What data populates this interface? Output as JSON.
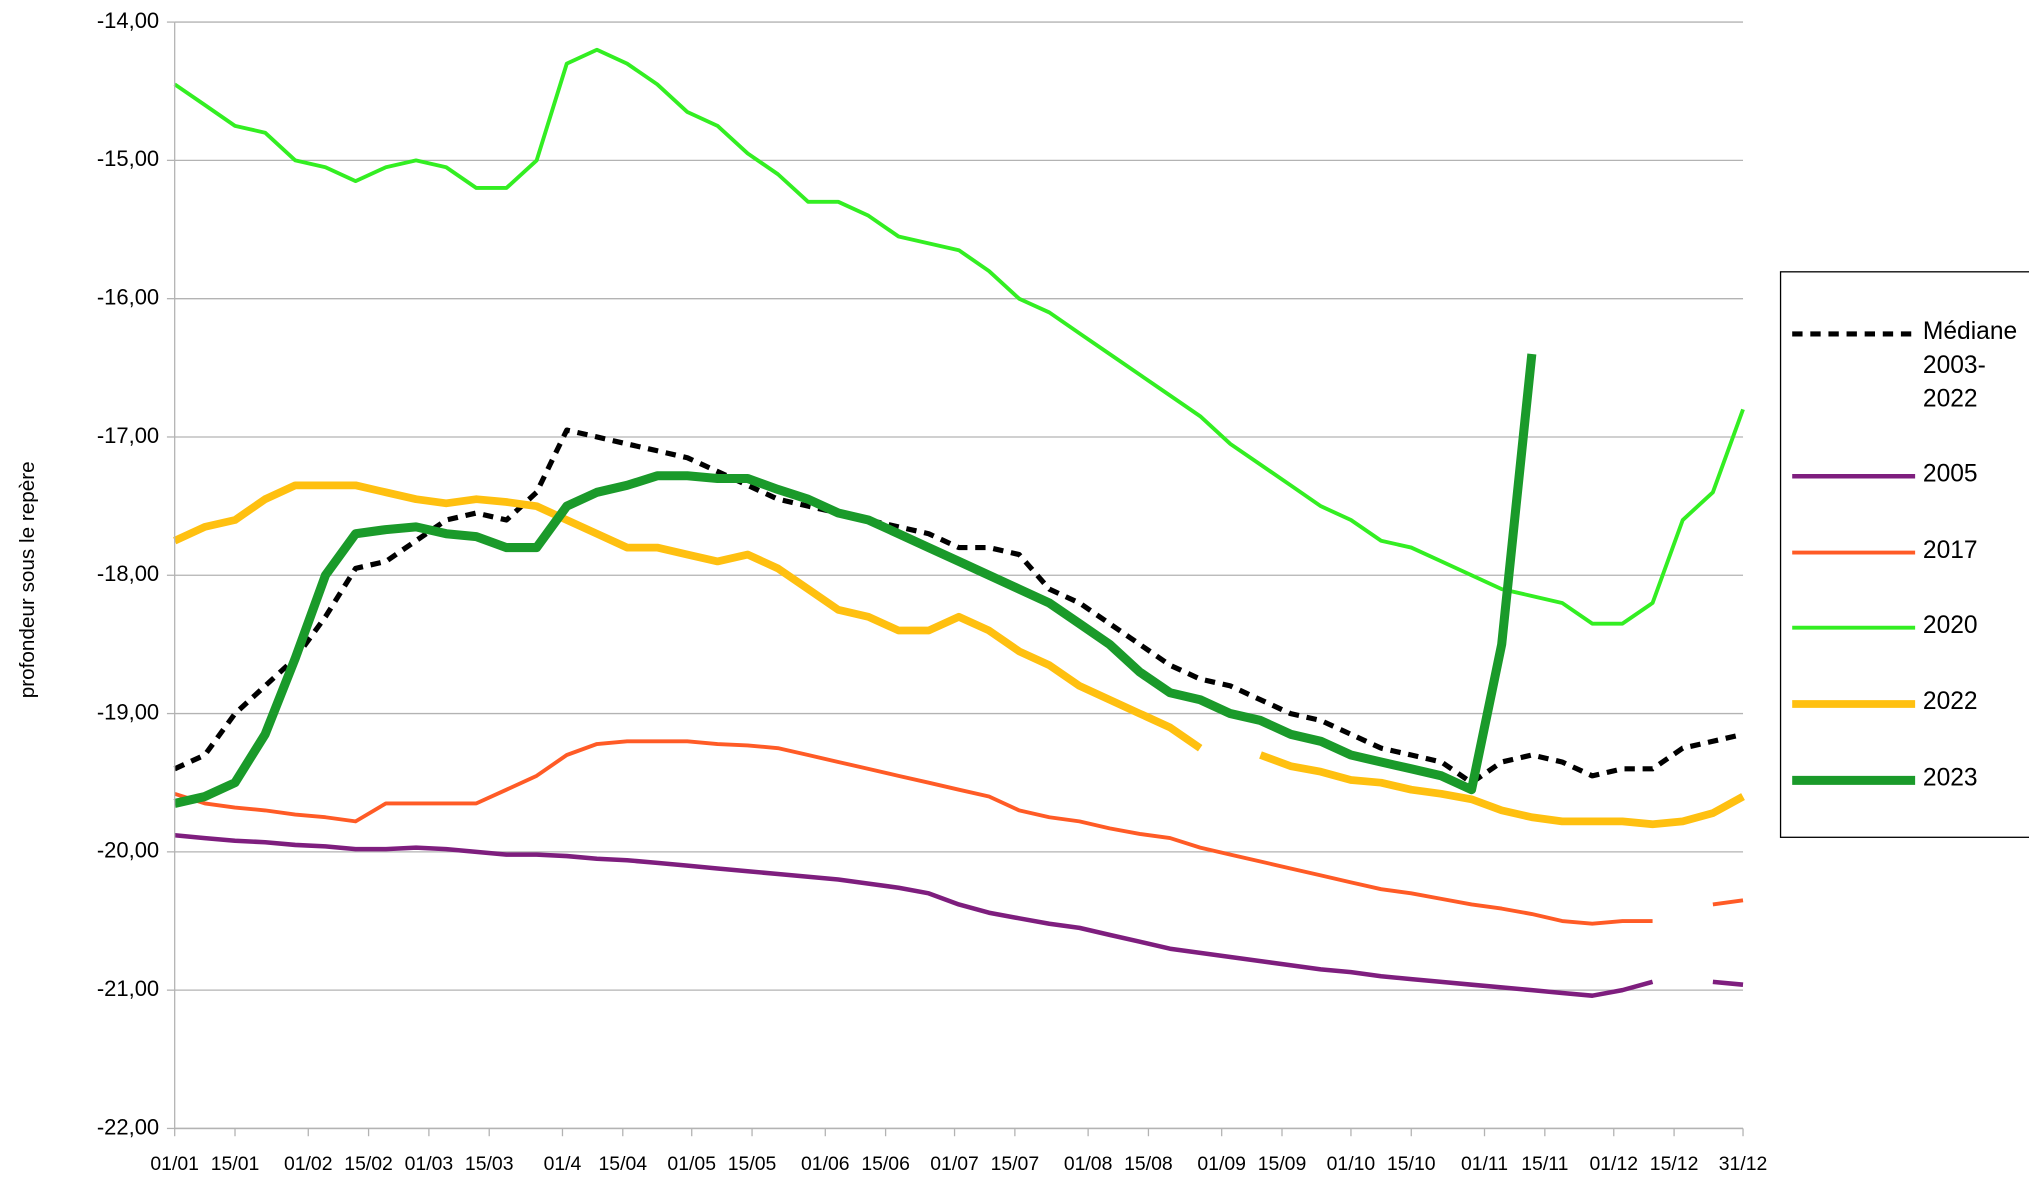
{
  "chart_data": {
    "type": "line",
    "y_label": "profondeur sous le repère",
    "x": [
      1,
      8,
      15,
      22,
      29,
      36,
      43,
      50,
      57,
      64,
      71,
      78,
      85,
      92,
      99,
      106,
      113,
      120,
      127,
      134,
      141,
      148,
      155,
      162,
      169,
      176,
      183,
      190,
      197,
      204,
      211,
      218,
      225,
      232,
      239,
      246,
      253,
      260,
      267,
      274,
      281,
      288,
      295,
      302,
      309,
      316,
      323,
      330,
      337,
      344,
      351,
      358,
      365
    ],
    "xlim": [
      1,
      365
    ],
    "xticks": [
      {
        "value": 1,
        "label": "01/01"
      },
      {
        "value": 15,
        "label": "15/01"
      },
      {
        "value": 32,
        "label": "01/02"
      },
      {
        "value": 46,
        "label": "15/02"
      },
      {
        "value": 60,
        "label": "01/03"
      },
      {
        "value": 74,
        "label": "15/03"
      },
      {
        "value": 91,
        "label": "01/4"
      },
      {
        "value": 105,
        "label": "15/04"
      },
      {
        "value": 121,
        "label": "01/05"
      },
      {
        "value": 135,
        "label": "15/05"
      },
      {
        "value": 152,
        "label": "01/06"
      },
      {
        "value": 166,
        "label": "15/06"
      },
      {
        "value": 182,
        "label": "01/07"
      },
      {
        "value": 196,
        "label": "15/07"
      },
      {
        "value": 213,
        "label": "01/08"
      },
      {
        "value": 227,
        "label": "15/08"
      },
      {
        "value": 244,
        "label": "01/09"
      },
      {
        "value": 258,
        "label": "15/09"
      },
      {
        "value": 274,
        "label": "01/10"
      },
      {
        "value": 288,
        "label": "15/10"
      },
      {
        "value": 305,
        "label": "01/11"
      },
      {
        "value": 319,
        "label": "15/11"
      },
      {
        "value": 335,
        "label": "01/12"
      },
      {
        "value": 349,
        "label": "15/12"
      },
      {
        "value": 365,
        "label": "31/12"
      }
    ],
    "ylim": [
      -22,
      -14
    ],
    "yticks": [
      {
        "value": -22,
        "label": "-22,00"
      },
      {
        "value": -21,
        "label": "-21,00"
      },
      {
        "value": -20,
        "label": "-20,00"
      },
      {
        "value": -19,
        "label": "-19,00"
      },
      {
        "value": -18,
        "label": "-18,00"
      },
      {
        "value": -17,
        "label": "-17,00"
      },
      {
        "value": -16,
        "label": "-16,00"
      },
      {
        "value": -15,
        "label": "-15,00"
      },
      {
        "value": -14,
        "label": "-14,00"
      }
    ],
    "grid": true,
    "legend": "right",
    "series": [
      {
        "name": "Médiane 2003-2022",
        "color": "#000000",
        "line_width": 4,
        "dash": true,
        "values": [
          -19.4,
          -19.3,
          -19.0,
          -18.8,
          -18.6,
          -18.3,
          -17.95,
          -17.9,
          -17.75,
          -17.6,
          -17.55,
          -17.6,
          -17.4,
          -16.95,
          -17.0,
          -17.05,
          -17.1,
          -17.15,
          -17.25,
          -17.35,
          -17.45,
          -17.5,
          -17.55,
          -17.6,
          -17.65,
          -17.7,
          -17.8,
          -17.8,
          -17.85,
          -18.1,
          -18.2,
          -18.35,
          -18.5,
          -18.65,
          -18.75,
          -18.8,
          -18.9,
          -19.0,
          -19.05,
          -19.15,
          -19.25,
          -19.3,
          -19.35,
          -19.5,
          -19.35,
          -19.3,
          -19.35,
          -19.45,
          -19.4,
          -19.4,
          -19.25,
          -19.2,
          -19.15
        ]
      },
      {
        "name": "2005",
        "color": "#7e1e7e",
        "line_width": 3.5,
        "dash": false,
        "values": [
          -19.88,
          -19.9,
          -19.92,
          -19.93,
          -19.95,
          -19.96,
          -19.98,
          -19.98,
          -19.97,
          -19.98,
          -20.0,
          -20.02,
          -20.02,
          -20.03,
          -20.05,
          -20.06,
          -20.08,
          -20.1,
          -20.12,
          -20.14,
          -20.16,
          -20.18,
          -20.2,
          -20.23,
          -20.26,
          -20.3,
          -20.38,
          -20.44,
          -20.48,
          -20.52,
          -20.55,
          -20.6,
          -20.65,
          -20.7,
          -20.73,
          -20.76,
          -20.79,
          -20.82,
          -20.85,
          -20.87,
          -20.9,
          -20.92,
          -20.94,
          -20.96,
          -20.98,
          -21.0,
          -21.02,
          -21.04,
          -21.0,
          -20.94,
          null,
          -20.94,
          -20.96
        ]
      },
      {
        "name": "2017",
        "color": "#ff5b26",
        "line_width": 3,
        "dash": false,
        "values": [
          -19.58,
          -19.65,
          -19.68,
          -19.7,
          -19.73,
          -19.75,
          -19.78,
          -19.65,
          -19.65,
          -19.65,
          -19.65,
          -19.55,
          -19.45,
          -19.3,
          -19.22,
          -19.2,
          -19.2,
          -19.2,
          -19.22,
          -19.23,
          -19.25,
          -19.3,
          -19.35,
          -19.4,
          -19.45,
          -19.5,
          -19.55,
          -19.6,
          -19.7,
          -19.75,
          -19.78,
          -19.83,
          -19.87,
          -19.9,
          -19.97,
          -20.02,
          -20.07,
          -20.12,
          -20.17,
          -20.22,
          -20.27,
          -20.3,
          -20.34,
          -20.38,
          -20.41,
          -20.45,
          -20.5,
          -20.52,
          -20.5,
          -20.5,
          null,
          -20.38,
          -20.35
        ]
      },
      {
        "name": "2020",
        "color": "#33ee22",
        "line_width": 3,
        "dash": false,
        "values": [
          -14.45,
          -14.6,
          -14.75,
          -14.8,
          -15.0,
          -15.05,
          -15.15,
          -15.05,
          -15.0,
          -15.05,
          -15.2,
          -15.2,
          -15.0,
          -14.3,
          -14.2,
          -14.3,
          -14.45,
          -14.65,
          -14.75,
          -14.95,
          -15.1,
          -15.3,
          -15.3,
          -15.4,
          -15.55,
          -15.6,
          -15.65,
          -15.8,
          -16.0,
          -16.1,
          -16.25,
          -16.4,
          -16.55,
          -16.7,
          -16.85,
          -17.05,
          -17.2,
          -17.35,
          -17.5,
          -17.6,
          -17.75,
          -17.8,
          -17.9,
          -18.0,
          -18.1,
          -18.15,
          -18.2,
          -18.35,
          -18.35,
          -18.2,
          -17.6,
          -17.4,
          -16.8
        ]
      },
      {
        "name": "2022",
        "color": "#ffc010",
        "line_width": 6,
        "dash": false,
        "values": [
          -17.75,
          -17.65,
          -17.6,
          -17.45,
          -17.35,
          -17.35,
          -17.35,
          -17.4,
          -17.45,
          -17.48,
          -17.45,
          -17.47,
          -17.5,
          -17.6,
          -17.7,
          -17.8,
          -17.8,
          -17.85,
          -17.9,
          -17.85,
          -17.95,
          -18.1,
          -18.25,
          -18.3,
          -18.4,
          -18.4,
          -18.3,
          -18.4,
          -18.55,
          -18.65,
          -18.8,
          -18.9,
          -19.0,
          -19.1,
          -19.25,
          null,
          -19.3,
          -19.38,
          -19.42,
          -19.48,
          -19.5,
          -19.55,
          -19.58,
          -19.62,
          -19.7,
          -19.75,
          -19.78,
          -19.78,
          -19.78,
          -19.8,
          -19.78,
          -19.72,
          -19.6
        ]
      },
      {
        "name": "2023",
        "color": "#1a9a2a",
        "line_width": 7,
        "dash": false,
        "values": [
          -19.65,
          -19.6,
          -19.5,
          -19.15,
          -18.6,
          -18.0,
          -17.7,
          -17.67,
          -17.65,
          -17.7,
          -17.72,
          -17.8,
          -17.8,
          -17.5,
          -17.4,
          -17.35,
          -17.28,
          -17.28,
          -17.3,
          -17.3,
          -17.38,
          -17.45,
          -17.55,
          -17.6,
          -17.7,
          -17.8,
          -17.9,
          -18.0,
          -18.1,
          -18.2,
          -18.35,
          -18.5,
          -18.7,
          -18.85,
          -18.9,
          -19.0,
          -19.05,
          -19.15,
          -19.2,
          -19.3,
          -19.35,
          -19.4,
          -19.45,
          -19.55,
          -18.5,
          -16.4,
          null,
          null,
          null,
          null,
          null,
          null,
          null
        ]
      }
    ]
  }
}
